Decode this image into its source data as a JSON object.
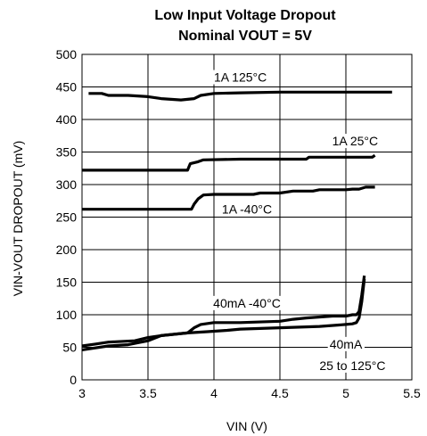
{
  "chart_data": {
    "type": "line",
    "title": "Low Input Voltage Dropout",
    "subtitle": "Nominal VOUT = 5V",
    "xlabel": "VIN (V)",
    "ylabel": "VIN-VOUT DROPOUT (mV)",
    "xlim": [
      3,
      5.5
    ],
    "ylim": [
      0,
      500
    ],
    "xticks": [
      3,
      3.5,
      4,
      4.5,
      5,
      5.5
    ],
    "xtick_labels": [
      "3",
      "3.5",
      "4",
      "4.5",
      "5",
      "5.5"
    ],
    "yticks": [
      0,
      50,
      100,
      150,
      200,
      250,
      300,
      350,
      400,
      450,
      500
    ],
    "ytick_labels": [
      "0",
      "50",
      "100",
      "150",
      "200",
      "250",
      "300",
      "350",
      "400",
      "450",
      "500"
    ],
    "grid": true,
    "series": [
      {
        "name": "1A 125°C",
        "x": [
          3.05,
          3.15,
          3.2,
          3.35,
          3.5,
          3.6,
          3.75,
          3.85,
          3.9,
          4.0,
          4.2,
          4.5,
          4.7,
          5.0,
          5.35
        ],
        "y": [
          440,
          440,
          437,
          437,
          435,
          432,
          430,
          432,
          437,
          440,
          441,
          442,
          442,
          442,
          442
        ]
      },
      {
        "name": "1A 25°C",
        "x": [
          3.0,
          3.8,
          3.82,
          3.88,
          3.92,
          4.2,
          4.7,
          4.72,
          5.0,
          5.2,
          5.22
        ],
        "y": [
          322,
          322,
          332,
          335,
          338,
          339,
          339,
          342,
          342,
          342,
          345
        ]
      },
      {
        "name": "1A -40°C",
        "x": [
          3.0,
          3.83,
          3.85,
          3.88,
          3.92,
          4.0,
          4.15,
          4.3,
          4.35,
          4.5,
          4.6,
          4.75,
          4.8,
          5.0,
          5.05,
          5.1,
          5.15,
          5.18,
          5.22
        ],
        "y": [
          262,
          262,
          270,
          278,
          284,
          285,
          285,
          285,
          287,
          287,
          290,
          290,
          292,
          292,
          293,
          293,
          296,
          296,
          296
        ]
      },
      {
        "name": "40mA -40°C",
        "x": [
          3.0,
          3.2,
          3.35,
          3.5,
          3.6,
          3.8,
          3.85,
          3.9,
          4.0,
          4.2,
          4.5,
          4.6,
          4.7,
          4.9,
          5.0,
          5.05,
          5.08,
          5.1,
          5.12,
          5.14
        ],
        "y": [
          46,
          52,
          54,
          60,
          68,
          72,
          80,
          85,
          88,
          88,
          90,
          93,
          95,
          98,
          98,
          100,
          100,
          105,
          130,
          160
        ]
      },
      {
        "name": "40mA 25 to 125°C",
        "x": [
          3.0,
          3.1,
          3.2,
          3.4,
          3.5,
          3.6,
          3.7,
          3.8,
          3.95,
          4.1,
          4.2,
          4.5,
          4.8,
          5.0,
          5.05,
          5.08,
          5.1,
          5.12,
          5.14
        ],
        "y": [
          52,
          55,
          58,
          60,
          65,
          68,
          70,
          72,
          74,
          76,
          78,
          80,
          82,
          85,
          86,
          88,
          95,
          120,
          155
        ]
      }
    ],
    "annotations": [
      {
        "text": "1A 125°C",
        "x": 4.2,
        "y": 465
      },
      {
        "text": "1A 25°C",
        "x": 5.07,
        "y": 367
      },
      {
        "text": "1A -40°C",
        "x": 4.25,
        "y": 262
      },
      {
        "text": "40mA -40°C",
        "x": 4.25,
        "y": 118
      },
      {
        "text": "40mA",
        "x": 5.0,
        "y": 55
      },
      {
        "text": "25 to 125°C",
        "x": 5.05,
        "y": 22
      }
    ]
  }
}
